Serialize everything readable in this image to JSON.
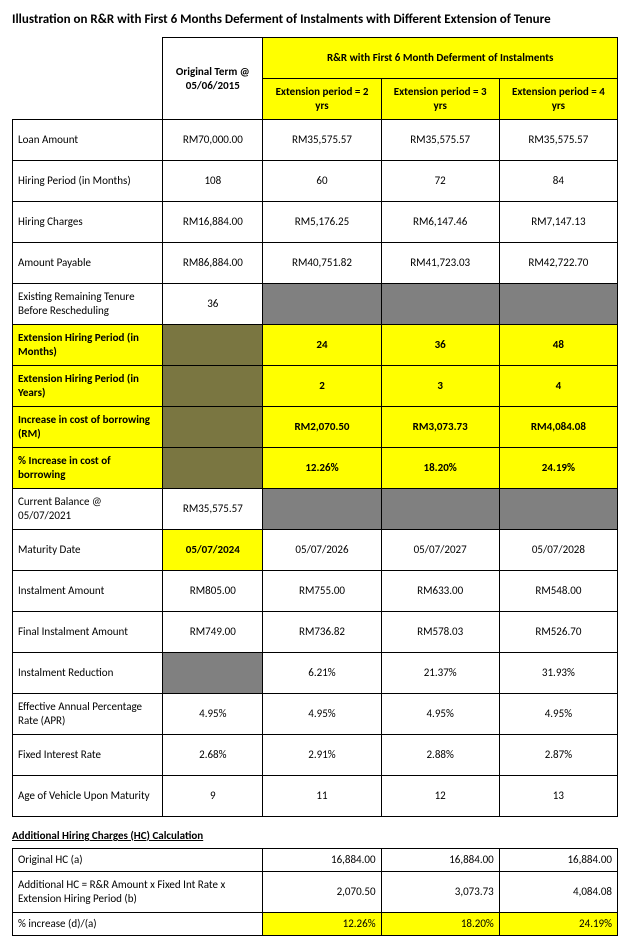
{
  "title": "Illustration on R&R with First 6 Months Deferment of Instalments with Different Extension of Tenure",
  "headers": {
    "blank_tl": "",
    "original_term": "Original Term @ 05/06/2015",
    "rr_banner": "R&R with First 6 Month Deferment of Instalments",
    "ext2": "Extension period = 2 yrs",
    "ext3": "Extension period = 3 yrs",
    "ext4": "Extension period = 4 yrs"
  },
  "rows": {
    "loan_amount": {
      "label": "Loan Amount",
      "orig": "RM70,000.00",
      "e2": "RM35,575.57",
      "e3": "RM35,575.57",
      "e4": "RM35,575.57"
    },
    "hiring_period_m": {
      "label": "Hiring Period (in Months)",
      "orig": "108",
      "e2": "60",
      "e3": "72",
      "e4": "84"
    },
    "hiring_charges": {
      "label": "Hiring Charges",
      "orig": "RM16,884.00",
      "e2": "RM5,176.25",
      "e3": "RM6,147.46",
      "e4": "RM7,147.13"
    },
    "amount_payable": {
      "label": "Amount Payable",
      "orig": "RM86,884.00",
      "e2": "RM40,751.82",
      "e3": "RM41,723.03",
      "e4": "RM42,722.70"
    },
    "existing_tenure": {
      "label": "Existing Remaining Tenure Before Rescheduling",
      "orig": "36"
    },
    "ext_hiring_m": {
      "label": "Extension Hiring Period (in Months)",
      "e2": "24",
      "e3": "36",
      "e4": "48"
    },
    "ext_hiring_y": {
      "label": "Extension Hiring Period (in Years)",
      "e2": "2",
      "e3": "3",
      "e4": "4"
    },
    "inc_cost_rm": {
      "label": "Increase in cost of borrowing (RM)",
      "e2": "RM2,070.50",
      "e3": "RM3,073.73",
      "e4": "RM4,084.08"
    },
    "inc_cost_pct": {
      "label": "% Increase in cost of borrowing",
      "e2": "12.26%",
      "e3": "18.20%",
      "e4": "24.19%"
    },
    "current_balance": {
      "label": "Current Balance @ 05/07/2021",
      "orig": "RM35,575.57"
    },
    "maturity_date": {
      "label": "Maturity Date",
      "orig": "05/07/2024",
      "e2": "05/07/2026",
      "e3": "05/07/2027",
      "e4": "05/07/2028"
    },
    "instalment": {
      "label": "Instalment Amount",
      "orig": "RM805.00",
      "e2": "RM755.00",
      "e3": "RM633.00",
      "e4": "RM548.00"
    },
    "final_instalment": {
      "label": "Final Instalment Amount",
      "orig": "RM749.00",
      "e2": "RM736.82",
      "e3": "RM578.03",
      "e4": "RM526.70"
    },
    "inst_reduction": {
      "label": "Instalment Reduction",
      "e2": "6.21%",
      "e3": "21.37%",
      "e4": "31.93%"
    },
    "apr": {
      "label": "Effective Annual Percentage Rate (APR)",
      "orig": "4.95%",
      "e2": "4.95%",
      "e3": "4.95%",
      "e4": "4.95%"
    },
    "fixed_rate": {
      "label": "Fixed Interest Rate",
      "orig": "2.68%",
      "e2": "2.91%",
      "e3": "2.88%",
      "e4": "2.87%"
    },
    "age_vehicle": {
      "label": "Age of Vehicle Upon Maturity",
      "orig": "9",
      "e2": "11",
      "e3": "12",
      "e4": "13"
    }
  },
  "hc_heading": "Additional Hiring Charges (HC) Calculation",
  "hc": {
    "orig": {
      "label": "Original HC (a)",
      "e2": "16,884.00",
      "e3": "16,884.00",
      "e4": "16,884.00"
    },
    "add": {
      "label": "Additional HC = R&R Amount x Fixed Int Rate x Extension Hiring Period  (b)",
      "e2": "2,070.50",
      "e3": "3,073.73",
      "e4": "4,084.08"
    },
    "pct": {
      "label": "% increase (d)/(a)",
      "e2": "12.26%",
      "e3": "18.20%",
      "e4": "24.19%"
    }
  }
}
